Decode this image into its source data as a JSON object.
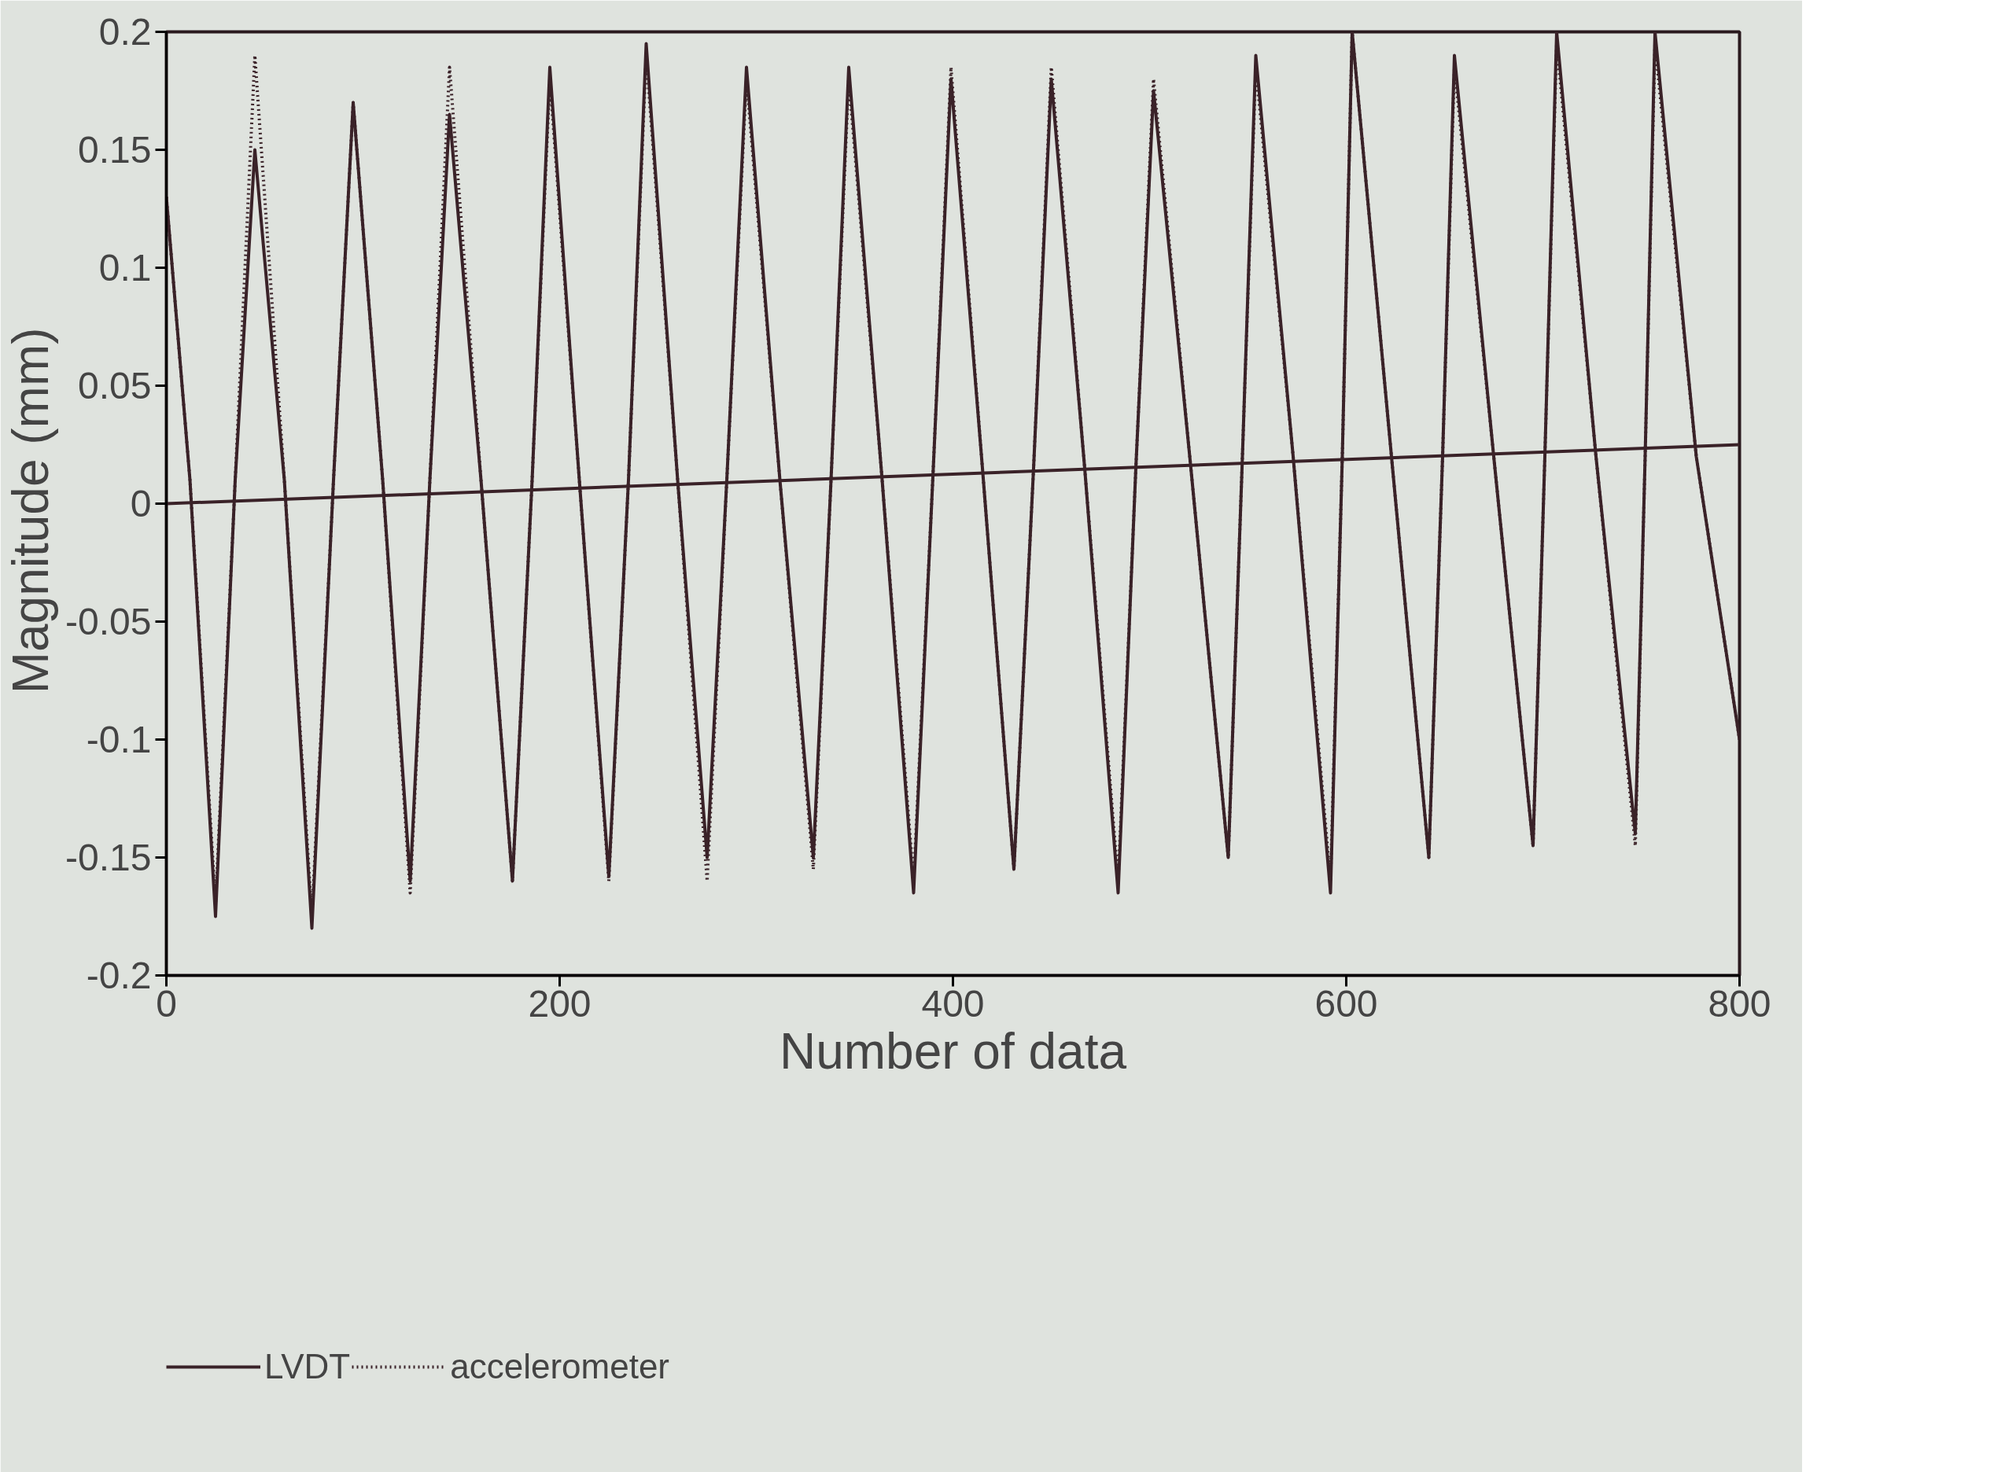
{
  "chart_data": {
    "type": "line",
    "xlabel": "Number of data",
    "ylabel": "Magnitude  (mm)",
    "xlim": [
      0,
      800
    ],
    "ylim": [
      -0.2,
      0.2
    ],
    "xticks": [
      0,
      200,
      400,
      600,
      800
    ],
    "yticks": [
      -0.2,
      -0.15,
      -0.1,
      -0.05,
      0,
      0.05,
      0.1,
      0.15,
      0.2
    ],
    "grid": false,
    "legend": "bottom left",
    "marker": "none",
    "series": [
      {
        "name": "LVDT",
        "color": "#3a2228",
        "line_style": "solid",
        "x": [
          0,
          12,
          25,
          35,
          45,
          60,
          74,
          85,
          95,
          110,
          124,
          134,
          144,
          160,
          176,
          186,
          195,
          210,
          225,
          235,
          244,
          260,
          275,
          285,
          295,
          312,
          329,
          338,
          347,
          364,
          380,
          390,
          399,
          415,
          431,
          441,
          450,
          467,
          484,
          493,
          502,
          521,
          540,
          547,
          554,
          573,
          592,
          598,
          603,
          623,
          642,
          649,
          655,
          675,
          695,
          701,
          707,
          727,
          747,
          752,
          757,
          778,
          800
        ],
        "values": [
          0.13,
          0.01,
          -0.175,
          0.01,
          0.15,
          0.01,
          -0.18,
          0.01,
          0.17,
          0.01,
          -0.16,
          0.01,
          0.165,
          0.01,
          -0.16,
          0.01,
          0.185,
          0.01,
          -0.158,
          0.01,
          0.195,
          0.01,
          -0.15,
          0.01,
          0.185,
          0.01,
          -0.15,
          0.01,
          0.185,
          0.01,
          -0.165,
          0.015,
          0.18,
          0.015,
          -0.155,
          0.015,
          0.18,
          0.015,
          -0.165,
          0.015,
          0.175,
          0.015,
          -0.15,
          0.015,
          0.19,
          0.02,
          -0.165,
          0.02,
          0.2,
          0.02,
          -0.15,
          0.02,
          0.19,
          0.02,
          -0.145,
          0.02,
          0.2,
          0.02,
          -0.14,
          0.02,
          0.2,
          0.02,
          -0.1
        ]
      },
      {
        "name": "accelerometer",
        "color": "#3a2228",
        "line_style": "dotted",
        "x": [
          0,
          12,
          25,
          35,
          45,
          60,
          74,
          85,
          95,
          110,
          124,
          134,
          144,
          160,
          176,
          186,
          195,
          210,
          225,
          235,
          244,
          260,
          275,
          285,
          295,
          312,
          329,
          338,
          347,
          364,
          380,
          390,
          399,
          415,
          431,
          441,
          450,
          467,
          484,
          493,
          502,
          521,
          540,
          547,
          554,
          573,
          592,
          598,
          603,
          623,
          642,
          649,
          655,
          675,
          695,
          701,
          707,
          727,
          747,
          752,
          757,
          778,
          800
        ],
        "values": [
          0.13,
          0.01,
          -0.17,
          0.01,
          0.19,
          0.01,
          -0.175,
          0.01,
          0.17,
          0.01,
          -0.165,
          0.01,
          0.185,
          0.01,
          -0.16,
          0.01,
          0.18,
          0.01,
          -0.16,
          0.01,
          0.19,
          0.01,
          -0.16,
          0.01,
          0.18,
          0.01,
          -0.155,
          0.01,
          0.18,
          0.01,
          -0.16,
          0.015,
          0.185,
          0.015,
          -0.155,
          0.015,
          0.185,
          0.015,
          -0.16,
          0.015,
          0.18,
          0.015,
          -0.15,
          0.015,
          0.185,
          0.02,
          -0.16,
          0.02,
          0.2,
          0.02,
          -0.15,
          0.02,
          0.185,
          0.02,
          -0.145,
          0.02,
          0.195,
          0.02,
          -0.145,
          0.02,
          0.195,
          0.02,
          -0.1
        ]
      },
      {
        "color": "#3a2228",
        "line_style": "solid",
        "x": [
          0,
          800
        ],
        "values": [
          0,
          0.025
        ]
      }
    ]
  }
}
